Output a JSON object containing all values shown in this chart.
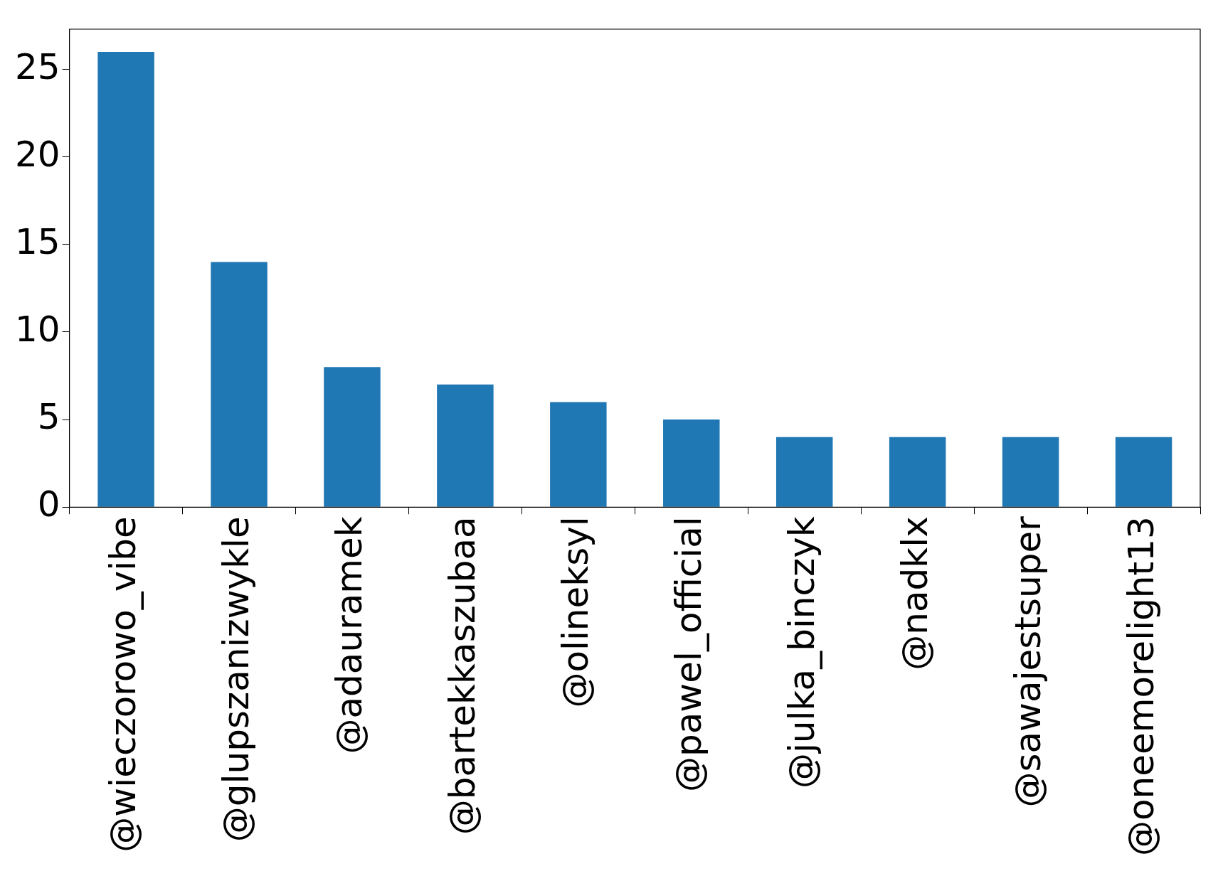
{
  "chart_data": {
    "type": "bar",
    "categories": [
      "@wieczorowo_vibe",
      "@glupszanizwykle",
      "@adauramek",
      "@bartekkaszubaa",
      "@olineksyl",
      "@pawel_official",
      "@julka_binczyk",
      "@nadklx",
      "@sawajestsuper",
      "@oneemorelight13"
    ],
    "values": [
      26,
      14,
      8,
      7,
      6,
      5,
      4,
      4,
      4,
      4
    ],
    "color": "#1f77b4",
    "ylim": [
      0,
      27.3
    ],
    "yticks": [
      0,
      5,
      10,
      15,
      20,
      25
    ],
    "grid": false,
    "legend": false
  }
}
